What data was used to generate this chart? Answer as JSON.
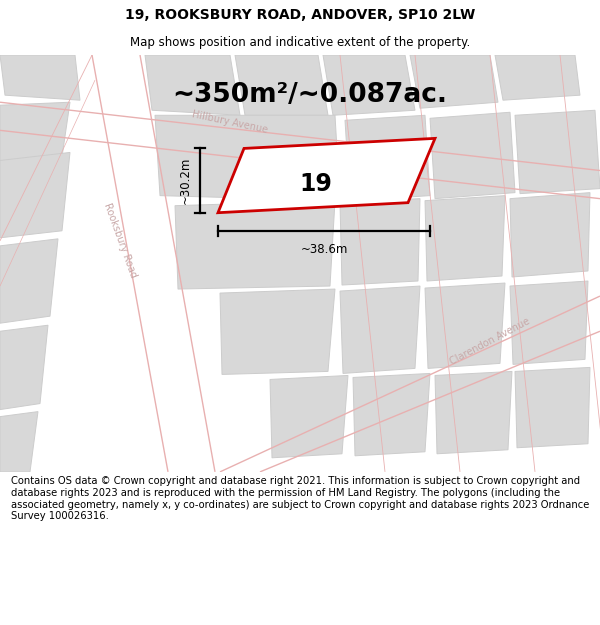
{
  "title": "19, ROOKSBURY ROAD, ANDOVER, SP10 2LW",
  "subtitle": "Map shows position and indicative extent of the property.",
  "area_text": "~350m²/~0.087ac.",
  "label_19": "19",
  "dim_width": "~38.6m",
  "dim_height": "~30.2m",
  "footer": "Contains OS data © Crown copyright and database right 2021. This information is subject to Crown copyright and database rights 2023 and is reproduced with the permission of HM Land Registry. The polygons (including the associated geometry, namely x, y co-ordinates) are subject to Crown copyright and database rights 2023 Ordnance Survey 100026316.",
  "bg_color": "white",
  "map_bg": "#f5f4f4",
  "building_fill": "#d8d8d8",
  "building_edge": "#cccccc",
  "road_line_color": "#e8b0b0",
  "property_stroke": "#cc0000",
  "property_fill": "white",
  "road_label_color": "#c8a8a8",
  "title_fontsize": 10,
  "subtitle_fontsize": 8.5,
  "area_fontsize": 19,
  "label_fontsize": 17,
  "footer_fontsize": 7.2,
  "road_label_fontsize": 7
}
